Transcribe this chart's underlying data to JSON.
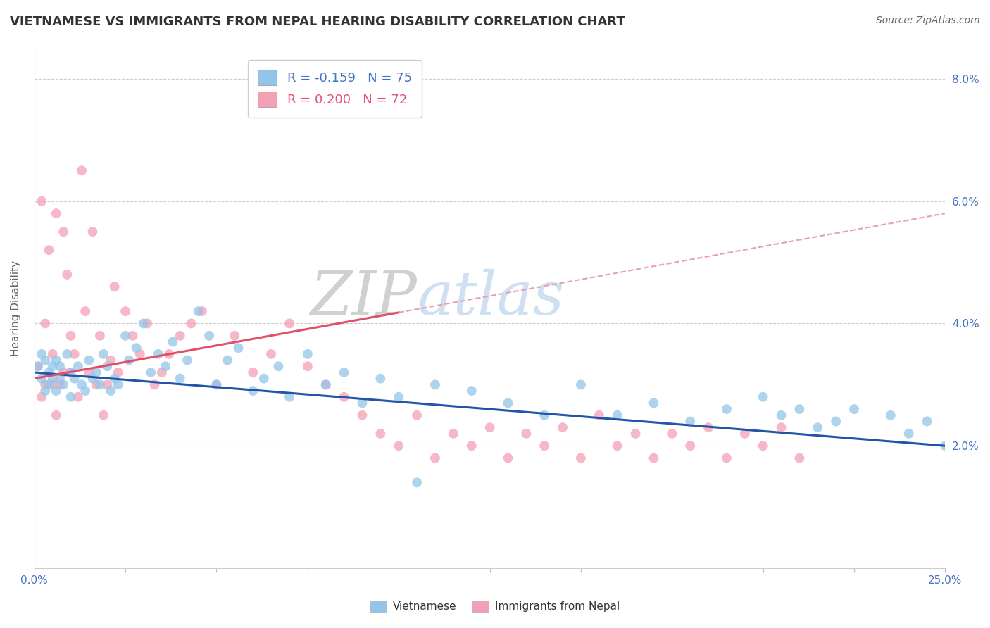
{
  "title": "VIETNAMESE VS IMMIGRANTS FROM NEPAL HEARING DISABILITY CORRELATION CHART",
  "source": "Source: ZipAtlas.com",
  "ylabel": "Hearing Disability",
  "xlim": [
    0.0,
    0.25
  ],
  "ylim": [
    0.0,
    0.085
  ],
  "xticks": [
    0.0,
    0.025,
    0.05,
    0.075,
    0.1,
    0.125,
    0.15,
    0.175,
    0.2,
    0.225,
    0.25
  ],
  "yticks_right": [
    0.02,
    0.04,
    0.06,
    0.08
  ],
  "ytick_labels_right": [
    "2.0%",
    "4.0%",
    "6.0%",
    "8.0%"
  ],
  "blue_color": "#92C5E8",
  "pink_color": "#F4A0B4",
  "blue_line_color": "#2255AA",
  "pink_line_solid_color": "#E0506A",
  "pink_line_dash_color": "#E8A0B0",
  "legend_R1": "R = -0.159",
  "legend_N1": "N = 75",
  "legend_R2": "R = 0.200",
  "legend_N2": "N = 72",
  "R1": -0.159,
  "N1": 75,
  "R2": 0.2,
  "N2": 72,
  "title_fontsize": 13,
  "axis_label_fontsize": 11,
  "tick_fontsize": 11,
  "grid_color": "#CCCCCC",
  "background_color": "#FFFFFF",
  "blue_x_data": [
    0.001,
    0.002,
    0.002,
    0.003,
    0.003,
    0.004,
    0.004,
    0.005,
    0.005,
    0.006,
    0.006,
    0.007,
    0.007,
    0.008,
    0.009,
    0.01,
    0.01,
    0.011,
    0.012,
    0.013,
    0.014,
    0.015,
    0.016,
    0.017,
    0.018,
    0.019,
    0.02,
    0.021,
    0.022,
    0.023,
    0.025,
    0.026,
    0.028,
    0.03,
    0.032,
    0.034,
    0.036,
    0.038,
    0.04,
    0.042,
    0.045,
    0.048,
    0.05,
    0.053,
    0.056,
    0.06,
    0.063,
    0.067,
    0.07,
    0.075,
    0.08,
    0.085,
    0.09,
    0.095,
    0.1,
    0.105,
    0.11,
    0.12,
    0.13,
    0.14,
    0.15,
    0.16,
    0.17,
    0.18,
    0.19,
    0.2,
    0.205,
    0.21,
    0.215,
    0.22,
    0.225,
    0.235,
    0.24,
    0.245,
    0.25
  ],
  "blue_y_data": [
    0.033,
    0.031,
    0.035,
    0.029,
    0.034,
    0.032,
    0.03,
    0.033,
    0.031,
    0.034,
    0.029,
    0.033,
    0.031,
    0.03,
    0.035,
    0.032,
    0.028,
    0.031,
    0.033,
    0.03,
    0.029,
    0.034,
    0.031,
    0.032,
    0.03,
    0.035,
    0.033,
    0.029,
    0.031,
    0.03,
    0.038,
    0.034,
    0.036,
    0.04,
    0.032,
    0.035,
    0.033,
    0.037,
    0.031,
    0.034,
    0.042,
    0.038,
    0.03,
    0.034,
    0.036,
    0.029,
    0.031,
    0.033,
    0.028,
    0.035,
    0.03,
    0.032,
    0.027,
    0.031,
    0.028,
    0.014,
    0.03,
    0.029,
    0.027,
    0.025,
    0.03,
    0.025,
    0.027,
    0.024,
    0.026,
    0.028,
    0.025,
    0.026,
    0.023,
    0.024,
    0.026,
    0.025,
    0.022,
    0.024,
    0.02
  ],
  "pink_x_data": [
    0.001,
    0.002,
    0.002,
    0.003,
    0.003,
    0.004,
    0.005,
    0.005,
    0.006,
    0.006,
    0.007,
    0.008,
    0.008,
    0.009,
    0.01,
    0.01,
    0.011,
    0.012,
    0.013,
    0.014,
    0.015,
    0.016,
    0.017,
    0.018,
    0.019,
    0.02,
    0.021,
    0.022,
    0.023,
    0.025,
    0.027,
    0.029,
    0.031,
    0.033,
    0.035,
    0.037,
    0.04,
    0.043,
    0.046,
    0.05,
    0.055,
    0.06,
    0.065,
    0.07,
    0.075,
    0.08,
    0.085,
    0.09,
    0.095,
    0.1,
    0.105,
    0.11,
    0.115,
    0.12,
    0.125,
    0.13,
    0.135,
    0.14,
    0.145,
    0.15,
    0.155,
    0.16,
    0.165,
    0.17,
    0.175,
    0.18,
    0.185,
    0.19,
    0.195,
    0.2,
    0.205,
    0.21
  ],
  "pink_y_data": [
    0.033,
    0.06,
    0.028,
    0.04,
    0.03,
    0.052,
    0.035,
    0.03,
    0.025,
    0.058,
    0.03,
    0.032,
    0.055,
    0.048,
    0.038,
    0.032,
    0.035,
    0.028,
    0.065,
    0.042,
    0.032,
    0.055,
    0.03,
    0.038,
    0.025,
    0.03,
    0.034,
    0.046,
    0.032,
    0.042,
    0.038,
    0.035,
    0.04,
    0.03,
    0.032,
    0.035,
    0.038,
    0.04,
    0.042,
    0.03,
    0.038,
    0.032,
    0.035,
    0.04,
    0.033,
    0.03,
    0.028,
    0.025,
    0.022,
    0.02,
    0.025,
    0.018,
    0.022,
    0.02,
    0.023,
    0.018,
    0.022,
    0.02,
    0.023,
    0.018,
    0.025,
    0.02,
    0.022,
    0.018,
    0.022,
    0.02,
    0.023,
    0.018,
    0.022,
    0.02,
    0.023,
    0.018
  ]
}
